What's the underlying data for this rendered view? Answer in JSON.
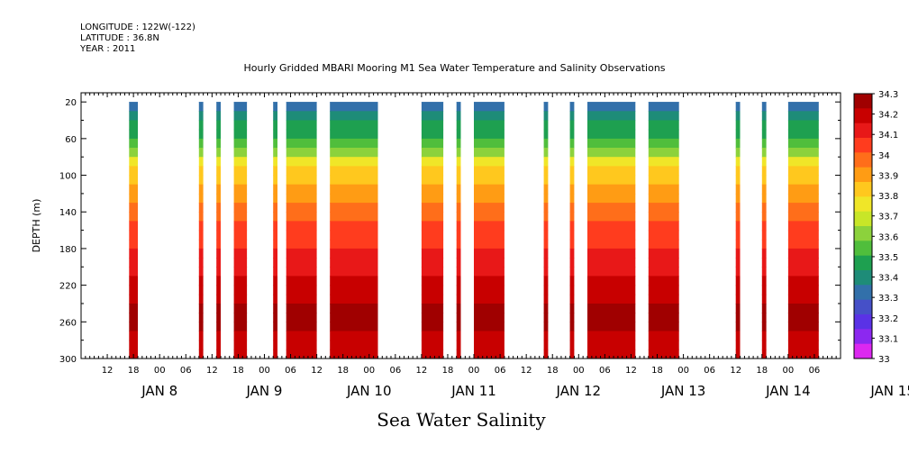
{
  "header": {
    "longitude": "LONGITUDE : 122W(-122)",
    "latitude": "LATITUDE : 36.8N",
    "year": "YEAR : 2011"
  },
  "title": "Hourly Gridded MBARI Mooring M1 Sea Water Temperature and Salinity Observations",
  "main_title": "Sea Water Salinity",
  "chart_data": {
    "type": "heatmap",
    "title": "Hourly Gridded MBARI Mooring M1 Sea Water Temperature and Salinity Observations",
    "ylabel": "DEPTH (m)",
    "xlabel": "",
    "y_range": [
      300,
      10
    ],
    "y_ticks": [
      20,
      60,
      100,
      140,
      180,
      220,
      260,
      300
    ],
    "x_range_hours": [
      0,
      174
    ],
    "hour_tick_labels": [
      "12",
      "18",
      "00",
      "06",
      "12",
      "18",
      "00",
      "06",
      "12",
      "18",
      "00",
      "06",
      "12",
      "18",
      "00",
      "06",
      "12",
      "18",
      "00",
      "06",
      "12",
      "18",
      "00",
      "06",
      "12",
      "18",
      "00",
      "06"
    ],
    "day_labels": [
      "JAN 8",
      "JAN 9",
      "JAN 10",
      "JAN 11",
      "JAN 12",
      "JAN 13",
      "JAN 14",
      "JAN 15"
    ],
    "colorbar": {
      "levels": [
        "34.3",
        "34.2",
        "34.1",
        "34",
        "33.9",
        "33.8",
        "33.7",
        "33.6",
        "33.5",
        "33.4",
        "33.3",
        "33.2",
        "33.1",
        "33"
      ],
      "colors": [
        "#a00000",
        "#c80000",
        "#e81818",
        "#ff3c1e",
        "#ff6e1a",
        "#ff9c14",
        "#ffc81e",
        "#f0e628",
        "#c8e628",
        "#8cd23c",
        "#50be3c",
        "#1ea050",
        "#1e8c78",
        "#3270aa",
        "#4650c8",
        "#5a32e6",
        "#8c28f0",
        "#dc28f0"
      ]
    },
    "profile": [
      {
        "depth": 20,
        "salinity": 33.32
      },
      {
        "depth": 40,
        "salinity": 33.4
      },
      {
        "depth": 60,
        "salinity": 33.5
      },
      {
        "depth": 80,
        "salinity": 33.65
      },
      {
        "depth": 100,
        "salinity": 33.8
      },
      {
        "depth": 120,
        "salinity": 33.88
      },
      {
        "depth": 140,
        "salinity": 33.95
      },
      {
        "depth": 160,
        "salinity": 34.02
      },
      {
        "depth": 180,
        "salinity": 34.07
      },
      {
        "depth": 200,
        "salinity": 34.12
      },
      {
        "depth": 220,
        "salinity": 34.18
      },
      {
        "depth": 240,
        "salinity": 34.22
      },
      {
        "depth": 260,
        "salinity": 34.26
      },
      {
        "depth": 280,
        "salinity": 34.22
      },
      {
        "depth": 300,
        "salinity": 34.2
      }
    ],
    "observation_periods": [
      {
        "start": "Jan 8 17:00",
        "end": "Jan 8 19:00"
      },
      {
        "start": "Jan 9 09:00",
        "end": "Jan 9 10:00"
      },
      {
        "start": "Jan 9 13:00",
        "end": "Jan 9 14:00"
      },
      {
        "start": "Jan 9 17:00",
        "end": "Jan 9 20:00"
      },
      {
        "start": "Jan 10 02:00",
        "end": "Jan 10 03:00"
      },
      {
        "start": "Jan 10 05:00",
        "end": "Jan 10 12:00"
      },
      {
        "start": "Jan 10 15:00",
        "end": "Jan 11 02:00"
      },
      {
        "start": "Jan 11 12:00",
        "end": "Jan 11 17:00"
      },
      {
        "start": "Jan 11 20:00",
        "end": "Jan 11 21:00"
      },
      {
        "start": "Jan 12 00:00",
        "end": "Jan 12 07:00"
      },
      {
        "start": "Jan 12 16:00",
        "end": "Jan 12 17:00"
      },
      {
        "start": "Jan 12 22:00",
        "end": "Jan 12 23:00"
      },
      {
        "start": "Jan 13 02:00",
        "end": "Jan 13 13:00"
      },
      {
        "start": "Jan 13 16:00",
        "end": "Jan 13 23:00"
      },
      {
        "start": "Jan 14 12:00",
        "end": "Jan 14 13:00"
      },
      {
        "start": "Jan 14 18:00",
        "end": "Jan 14 19:00"
      },
      {
        "start": "Jan 15 00:00",
        "end": "Jan 15 07:00"
      }
    ]
  }
}
